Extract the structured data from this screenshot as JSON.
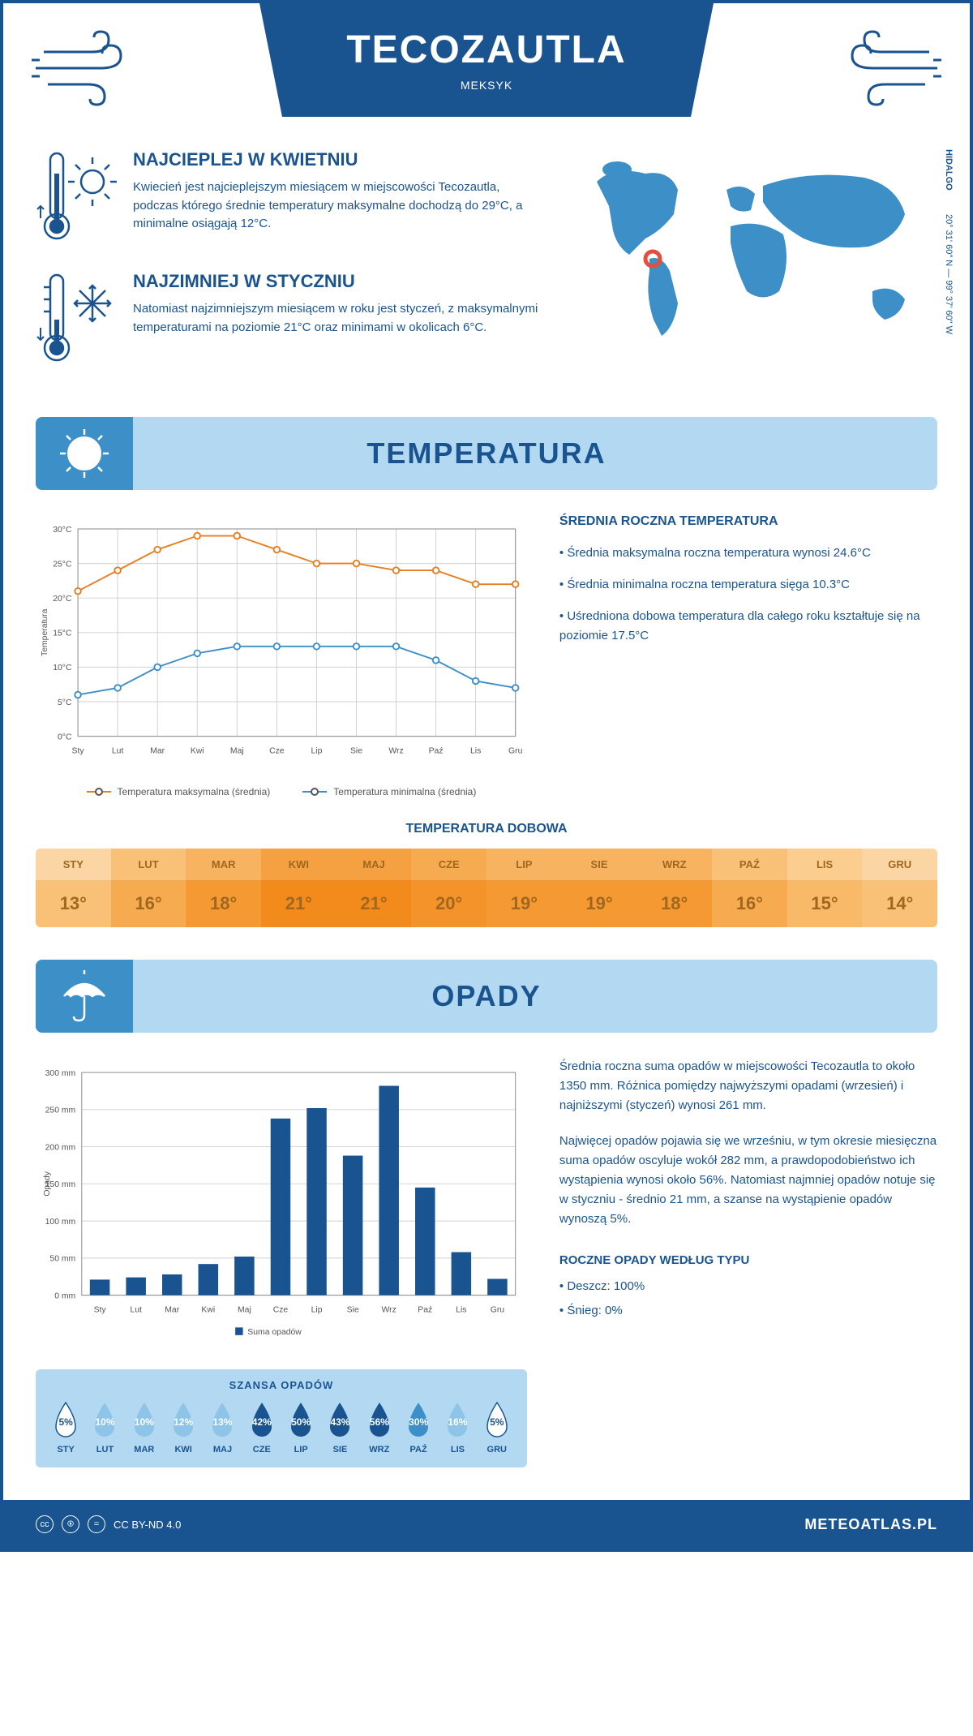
{
  "colors": {
    "primary": "#1a5490",
    "light_blue": "#b3d9f2",
    "mid_blue": "#3d8fc7",
    "map_blue": "#3d8fc7",
    "marker_red": "#e74c3c",
    "temp_max": "#e67e22",
    "temp_min": "#3d8fc7",
    "grid": "#d0d0d0",
    "bar": "#1a5490"
  },
  "header": {
    "title": "TECOZAUTLA",
    "subtitle": "MEKSYK"
  },
  "map": {
    "region": "HIDALGO",
    "coords": "20° 31' 60\" N — 99° 37' 60\" W",
    "marker_x": 0.22,
    "marker_y": 0.52
  },
  "warmest": {
    "title": "NAJCIEPLEJ W KWIETNIU",
    "text": "Kwiecień jest najcieplejszym miesiącem w miejscowości Tecozautla, podczas którego średnie temperatury maksymalne dochodzą do 29°C, a minimalne osiągają 12°C."
  },
  "coldest": {
    "title": "NAJZIMNIEJ W STYCZNIU",
    "text": "Natomiast najzimniejszym miesiącem w roku jest styczeń, z maksymalnymi temperaturami na poziomie 21°C oraz minimami w okolicach 6°C."
  },
  "sections": {
    "temperature": "TEMPERATURA",
    "precipitation": "OPADY"
  },
  "temp_chart": {
    "type": "line",
    "months": [
      "Sty",
      "Lut",
      "Mar",
      "Kwi",
      "Maj",
      "Cze",
      "Lip",
      "Sie",
      "Wrz",
      "Paź",
      "Lis",
      "Gru"
    ],
    "y_label": "Temperatura",
    "y_ticks": [
      "0°C",
      "5°C",
      "10°C",
      "15°C",
      "20°C",
      "25°C",
      "30°C"
    ],
    "ylim": [
      0,
      30
    ],
    "series_max": {
      "label": "Temperatura maksymalna (średnia)",
      "color": "#e67e22",
      "values": [
        21,
        24,
        27,
        29,
        29,
        27,
        25,
        25,
        24,
        24,
        22,
        22
      ]
    },
    "series_min": {
      "label": "Temperatura minimalna (średnia)",
      "color": "#3d8fc7",
      "values": [
        6,
        7,
        10,
        12,
        13,
        13,
        13,
        13,
        13,
        11,
        8,
        7
      ]
    }
  },
  "temp_stats": {
    "title": "ŚREDNIA ROCZNA TEMPERATURA",
    "items": [
      "• Średnia maksymalna roczna temperatura wynosi 24.6°C",
      "• Średnia minimalna roczna temperatura sięga 10.3°C",
      "• Uśredniona dobowa temperatura dla całego roku kształtuje się na poziomie 17.5°C"
    ]
  },
  "daily": {
    "title": "TEMPERATURA DOBOWA",
    "months": [
      "STY",
      "LUT",
      "MAR",
      "KWI",
      "MAJ",
      "CZE",
      "LIP",
      "SIE",
      "WRZ",
      "PAŹ",
      "LIS",
      "GRU"
    ],
    "values": [
      "13°",
      "16°",
      "18°",
      "21°",
      "21°",
      "20°",
      "19°",
      "19°",
      "18°",
      "16°",
      "15°",
      "14°"
    ],
    "head_colors": [
      "#fbd5a3",
      "#f9c178",
      "#f7b35f",
      "#f5a142",
      "#f5a142",
      "#f7ab50",
      "#f7b35f",
      "#f7b35f",
      "#f7b35f",
      "#f9c178",
      "#fbcd8e",
      "#fbd5a3"
    ],
    "val_colors": [
      "#f9c178",
      "#f7ab50",
      "#f59a33",
      "#f28a1c",
      "#f28a1c",
      "#f4932a",
      "#f59a33",
      "#f59a33",
      "#f59a33",
      "#f7ab50",
      "#f8b968",
      "#f9c178"
    ]
  },
  "precip_chart": {
    "type": "bar",
    "months": [
      "Sty",
      "Lut",
      "Mar",
      "Kwi",
      "Maj",
      "Cze",
      "Lip",
      "Sie",
      "Wrz",
      "Paź",
      "Lis",
      "Gru"
    ],
    "y_label": "Opady",
    "y_ticks": [
      "0 mm",
      "50 mm",
      "100 mm",
      "150 mm",
      "200 mm",
      "250 mm",
      "300 mm"
    ],
    "ylim": [
      0,
      300
    ],
    "values": [
      21,
      24,
      28,
      42,
      52,
      238,
      252,
      188,
      282,
      145,
      58,
      22
    ],
    "legend": "Suma opadów",
    "bar_color": "#1a5490"
  },
  "precip_text": {
    "p1": "Średnia roczna suma opadów w miejscowości Tecozautla to około 1350 mm. Różnica pomiędzy najwyższymi opadami (wrzesień) i najniższymi (styczeń) wynosi 261 mm.",
    "p2": "Najwięcej opadów pojawia się we wrześniu, w tym okresie miesięczna suma opadów oscyluje wokół 282 mm, a prawdopodobieństwo ich wystąpienia wynosi około 56%. Natomiast najmniej opadów notuje się w styczniu - średnio 21 mm, a szanse na wystąpienie opadów wynoszą 5%.",
    "type_title": "ROCZNE OPADY WEDŁUG TYPU",
    "type_items": [
      "• Deszcz: 100%",
      "• Śnieg: 0%"
    ]
  },
  "chance": {
    "title": "SZANSA OPADÓW",
    "months": [
      "STY",
      "LUT",
      "MAR",
      "KWI",
      "MAJ",
      "CZE",
      "LIP",
      "SIE",
      "WRZ",
      "PAŹ",
      "LIS",
      "GRU"
    ],
    "values": [
      "5%",
      "10%",
      "10%",
      "12%",
      "13%",
      "42%",
      "50%",
      "43%",
      "56%",
      "30%",
      "16%",
      "5%"
    ],
    "fills": [
      "#ffffff",
      "#8ec4e8",
      "#8ec4e8",
      "#8ec4e8",
      "#8ec4e8",
      "#1a5490",
      "#1a5490",
      "#1a5490",
      "#1a5490",
      "#3d8fc7",
      "#8ec4e8",
      "#ffffff"
    ],
    "text_colors": [
      "#1a5490",
      "#ffffff",
      "#ffffff",
      "#ffffff",
      "#ffffff",
      "#ffffff",
      "#ffffff",
      "#ffffff",
      "#ffffff",
      "#ffffff",
      "#ffffff",
      "#1a5490"
    ]
  },
  "footer": {
    "license": "CC BY-ND 4.0",
    "site": "METEOATLAS.PL"
  }
}
